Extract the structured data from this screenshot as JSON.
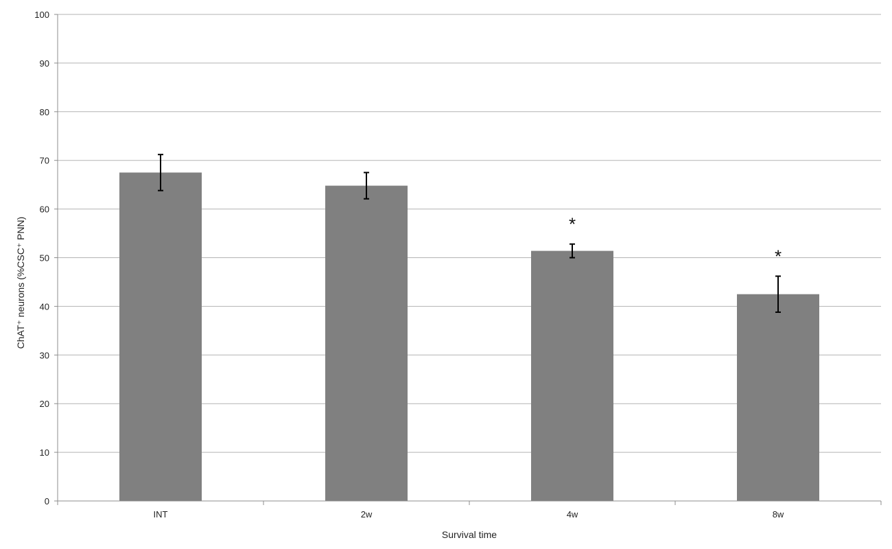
{
  "chart_data": {
    "type": "bar",
    "title": "",
    "xlabel": "Survival time",
    "ylabel": "ChAT⁺ neurons (%CSC⁺ PNN)",
    "categories": [
      "INT",
      "2w",
      "4w",
      "8w"
    ],
    "values": [
      67.5,
      64.8,
      51.4,
      42.5
    ],
    "error": [
      3.7,
      2.7,
      1.4,
      3.7
    ],
    "significance": [
      "",
      "",
      "*",
      "*"
    ],
    "ylim": [
      0,
      100
    ],
    "yticks": [
      0,
      10,
      20,
      30,
      40,
      50,
      60,
      70,
      80,
      90,
      100
    ],
    "grid": true,
    "legend": "none",
    "bar_color": "#808080",
    "grid_color": "#b3b3b3",
    "axis_color": "#8c8c8c",
    "error_color": "#000000"
  }
}
